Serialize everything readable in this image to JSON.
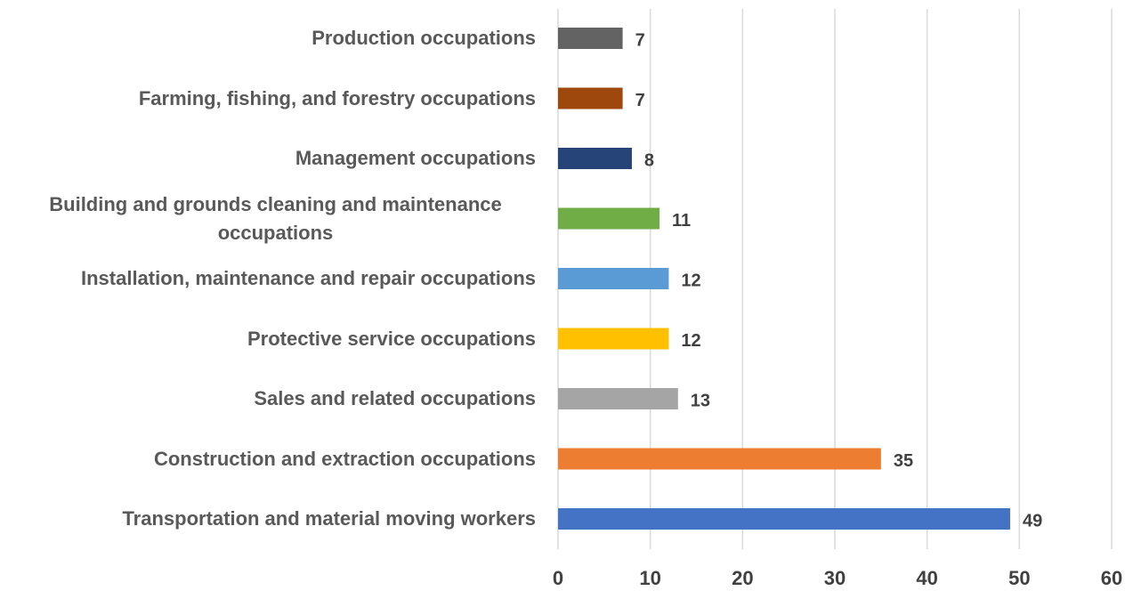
{
  "chart_data": {
    "type": "barh",
    "categories": [
      "Production occupations",
      "Farming, fishing, and forestry occupations",
      "Management occupations",
      "Building and grounds cleaning and maintenance occupations",
      "Installation, maintenance and repair occupations",
      "Protective service occupations",
      "Sales and related occupations",
      "Construction and extraction occupations",
      "Transportation and material moving workers"
    ],
    "values": [
      7,
      7,
      8,
      11,
      12,
      12,
      13,
      35,
      49
    ],
    "colors": [
      "#636363",
      "#9e480e",
      "#264478",
      "#70ad47",
      "#5b9bd5",
      "#ffc000",
      "#a5a5a5",
      "#ed7d31",
      "#4472c4"
    ],
    "xlim": [
      0,
      60
    ],
    "xticks": [
      0,
      10,
      20,
      30,
      40,
      50,
      60
    ],
    "grid": true
  }
}
